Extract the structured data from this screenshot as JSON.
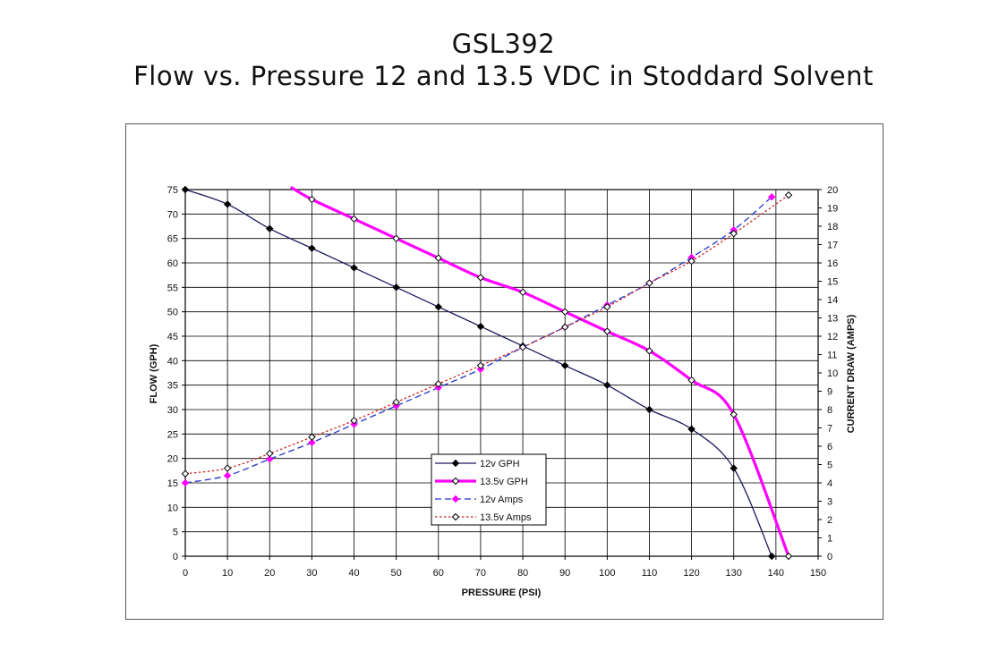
{
  "title": "GSL392",
  "subtitle": "Flow vs. Pressure 12 and 13.5 VDC in Stoddard Solvent",
  "chart_data": {
    "type": "line",
    "xlabel": "PRESSURE (PSI)",
    "ylabel": "FLOW (GPH)",
    "y2label": "CURRENT DRAW (AMPS)",
    "xlim": [
      0,
      150
    ],
    "ylim": [
      0,
      75
    ],
    "y2lim": [
      0,
      20
    ],
    "xticks": [
      0,
      10,
      20,
      30,
      40,
      50,
      60,
      70,
      80,
      90,
      100,
      110,
      120,
      130,
      140,
      150
    ],
    "yticks": [
      0,
      5,
      10,
      15,
      20,
      25,
      30,
      35,
      40,
      45,
      50,
      55,
      60,
      65,
      70,
      75
    ],
    "y2ticks": [
      0,
      1,
      2,
      3,
      4,
      5,
      6,
      7,
      8,
      9,
      10,
      11,
      12,
      13,
      14,
      15,
      16,
      17,
      18,
      19,
      20
    ],
    "grid": true,
    "legend_position": "bottom-center",
    "series": [
      {
        "name": "12v GPH",
        "axis": "left",
        "color": "#1a1a5e",
        "style": "solid",
        "marker": "filled-diamond",
        "points": [
          [
            0,
            75
          ],
          [
            10,
            72
          ],
          [
            20,
            67
          ],
          [
            30,
            63
          ],
          [
            40,
            59
          ],
          [
            50,
            55
          ],
          [
            60,
            51
          ],
          [
            70,
            47
          ],
          [
            80,
            43
          ],
          [
            90,
            39
          ],
          [
            100,
            35
          ],
          [
            110,
            30
          ],
          [
            120,
            26
          ],
          [
            130,
            18
          ],
          [
            139,
            0
          ]
        ]
      },
      {
        "name": "13.5v GPH",
        "axis": "left",
        "color": "#ff00ff",
        "style": "thick",
        "marker": "open-diamond",
        "points": [
          [
            25,
            75.5
          ],
          [
            30,
            73
          ],
          [
            40,
            69
          ],
          [
            50,
            65
          ],
          [
            60,
            61
          ],
          [
            70,
            57
          ],
          [
            80,
            54
          ],
          [
            90,
            50
          ],
          [
            100,
            46
          ],
          [
            110,
            42
          ],
          [
            120,
            36
          ],
          [
            130,
            29
          ],
          [
            143,
            0
          ]
        ]
      },
      {
        "name": "12v Amps",
        "axis": "right",
        "color": "#2233cc",
        "style": "dashed",
        "marker": "magenta-diamond",
        "points": [
          [
            0,
            4
          ],
          [
            10,
            4.4
          ],
          [
            20,
            5.3
          ],
          [
            30,
            6.2
          ],
          [
            40,
            7.2
          ],
          [
            50,
            8.2
          ],
          [
            60,
            9.2
          ],
          [
            70,
            10.2
          ],
          [
            80,
            11.4
          ],
          [
            90,
            12.5
          ],
          [
            100,
            13.7
          ],
          [
            110,
            14.9
          ],
          [
            120,
            16.3
          ],
          [
            130,
            17.8
          ],
          [
            139,
            19.6
          ]
        ]
      },
      {
        "name": "13.5v Amps",
        "axis": "right",
        "color": "#cc2222",
        "style": "dotted",
        "marker": "open-diamond",
        "points": [
          [
            0,
            4.5
          ],
          [
            10,
            4.8
          ],
          [
            20,
            5.6
          ],
          [
            30,
            6.5
          ],
          [
            40,
            7.4
          ],
          [
            50,
            8.4
          ],
          [
            60,
            9.4
          ],
          [
            70,
            10.4
          ],
          [
            80,
            11.4
          ],
          [
            90,
            12.5
          ],
          [
            100,
            13.6
          ],
          [
            110,
            14.9
          ],
          [
            120,
            16.1
          ],
          [
            130,
            17.6
          ],
          [
            143,
            19.7
          ]
        ]
      }
    ]
  }
}
